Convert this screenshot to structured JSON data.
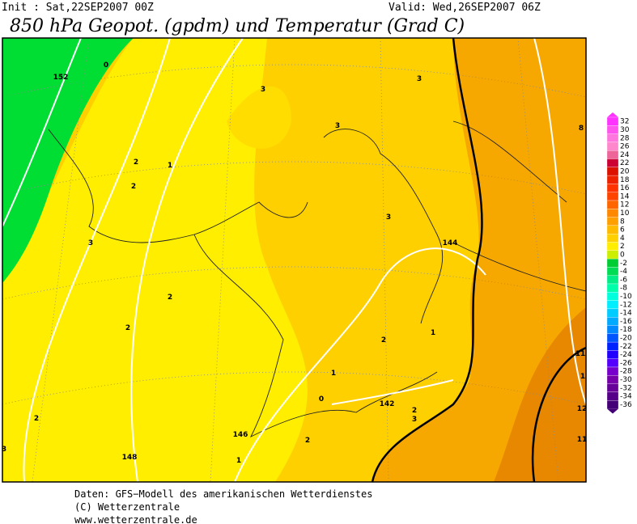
{
  "header": {
    "init": "Init : Sat,22SEP2007 00Z",
    "valid": "Valid: Wed,26SEP2007 06Z",
    "title": "850 hPa Geopot. (gpdm) und Temperatur (Grad C)"
  },
  "colorbar": {
    "labels": [
      "32",
      "30",
      "28",
      "26",
      "24",
      "22",
      "20",
      "18",
      "16",
      "14",
      "12",
      "10",
      "8",
      "6",
      "4",
      "2",
      "0",
      "-2",
      "-4",
      "-6",
      "-8",
      "-10",
      "-12",
      "-14",
      "-16",
      "-18",
      "-20",
      "-22",
      "-24",
      "-26",
      "-28",
      "-30",
      "-32",
      "-34",
      "-36"
    ]
  },
  "contour_labels": [
    "0",
    "152",
    "3",
    "3",
    "3",
    "1",
    "2",
    "2",
    "3",
    "3",
    "144",
    "2",
    "2",
    "2",
    "1",
    "1",
    "0",
    "142",
    "2",
    "3",
    "2",
    "146",
    "2",
    "148",
    "1",
    "8",
    "11",
    "1",
    "12",
    "11",
    "3"
  ],
  "footer": {
    "source": "Daten: GFS−Modell des amerikanischen Wetterdienstes",
    "copyright": "(C) Wetterzentrale",
    "url": "www.wetterzentrale.de"
  }
}
